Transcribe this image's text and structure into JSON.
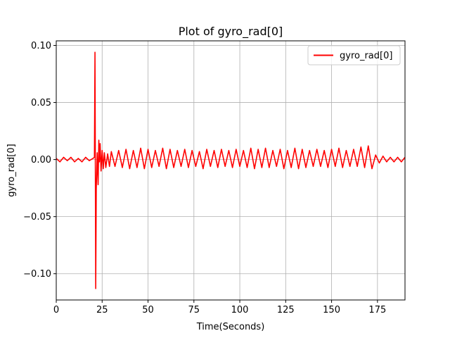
{
  "chart_data": {
    "type": "line",
    "title": "Plot of gyro_rad[0]",
    "xlabel": "Time(Seconds)",
    "ylabel": "gyro_rad[0]",
    "xlim": [
      0,
      190
    ],
    "ylim": [
      -0.123,
      0.104
    ],
    "xticks": [
      0,
      25,
      50,
      75,
      100,
      125,
      150,
      175
    ],
    "xtick_labels": [
      "0",
      "25",
      "50",
      "75",
      "100",
      "125",
      "150",
      "175"
    ],
    "yticks": [
      -0.1,
      -0.05,
      0.0,
      0.05,
      0.1
    ],
    "ytick_labels": [
      "−0.10",
      "−0.05",
      "0.00",
      "0.05",
      "0.10"
    ],
    "grid": true,
    "legend": "top-right",
    "series": [
      {
        "name": "gyro_rad[0]",
        "color": "#ff0000",
        "x": [
          0,
          2,
          4,
          6,
          8,
          10,
          12,
          14,
          16,
          18,
          20,
          20.8,
          21.1,
          21.3,
          21.5,
          21.8,
          22.3,
          22.8,
          23.2,
          23.5,
          23.9,
          24.4,
          25,
          25.6,
          26.2,
          27,
          28,
          29,
          30,
          32,
          34,
          36,
          38,
          40,
          42,
          44,
          46,
          48,
          50,
          52,
          54,
          56,
          58,
          60,
          62,
          64,
          66,
          68,
          70,
          72,
          74,
          76,
          78,
          80,
          82,
          84,
          86,
          88,
          90,
          92,
          94,
          96,
          98,
          100,
          102,
          104,
          106,
          108,
          110,
          112,
          114,
          116,
          118,
          120,
          122,
          124,
          126,
          128,
          130,
          132,
          134,
          136,
          138,
          140,
          142,
          144,
          146,
          148,
          150,
          152,
          154,
          156,
          158,
          160,
          162,
          164,
          166,
          168,
          170,
          172,
          174,
          176,
          178,
          180,
          182,
          184,
          186,
          188,
          190
        ],
        "y": [
          0.001,
          -0.002,
          0.002,
          -0.001,
          0.002,
          -0.002,
          0.001,
          -0.002,
          0.002,
          -0.001,
          0.001,
          0.002,
          0.094,
          -0.004,
          -0.113,
          -0.026,
          0.006,
          -0.022,
          0.017,
          -0.002,
          0.014,
          -0.01,
          0.008,
          -0.008,
          0.006,
          -0.007,
          0.005,
          -0.006,
          0.007,
          -0.006,
          0.008,
          -0.007,
          0.009,
          -0.008,
          0.008,
          -0.007,
          0.01,
          -0.008,
          0.009,
          -0.007,
          0.008,
          -0.006,
          0.01,
          -0.008,
          0.009,
          -0.007,
          0.008,
          -0.006,
          0.009,
          -0.007,
          0.008,
          -0.006,
          0.007,
          -0.008,
          0.009,
          -0.006,
          0.008,
          -0.007,
          0.009,
          -0.006,
          0.008,
          -0.007,
          0.009,
          -0.006,
          0.008,
          -0.007,
          0.01,
          -0.008,
          0.009,
          -0.007,
          0.01,
          -0.007,
          0.008,
          -0.006,
          0.009,
          -0.008,
          0.008,
          -0.007,
          0.01,
          -0.008,
          0.009,
          -0.007,
          0.008,
          -0.006,
          0.009,
          -0.006,
          0.008,
          -0.007,
          0.009,
          -0.006,
          0.01,
          -0.007,
          0.008,
          -0.006,
          0.009,
          -0.006,
          0.011,
          -0.007,
          0.012,
          -0.008,
          0.004,
          -0.003,
          0.003,
          -0.002,
          0.002,
          -0.002,
          0.002,
          -0.002,
          0.002
        ]
      }
    ]
  }
}
